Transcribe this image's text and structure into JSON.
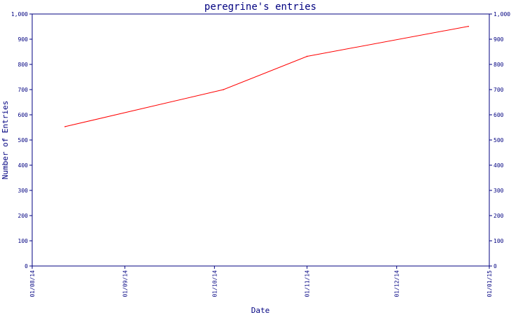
{
  "chart_data": {
    "type": "line",
    "title": "peregrine's entries",
    "xlabel": "Date",
    "ylabel": "Number of Entries",
    "x_ticks": [
      "01/08/14",
      "01/09/14",
      "01/10/14",
      "01/11/14",
      "01/12/14",
      "01/01/15"
    ],
    "y_ticks": [
      "0",
      "100",
      "200",
      "300",
      "400",
      "500",
      "600",
      "700",
      "800",
      "900",
      "1,000"
    ],
    "ylim": [
      0,
      1000
    ],
    "xlim": [
      "2014-08-01",
      "2015-01-01"
    ],
    "grid": false,
    "series": [
      {
        "color": "#ff0000",
        "points": [
          {
            "x": "2014-08-12",
            "y": 553
          },
          {
            "x": "2014-10-04",
            "y": 700
          },
          {
            "x": "2014-11-01",
            "y": 832
          },
          {
            "x": "2014-12-25",
            "y": 951
          }
        ]
      }
    ]
  }
}
